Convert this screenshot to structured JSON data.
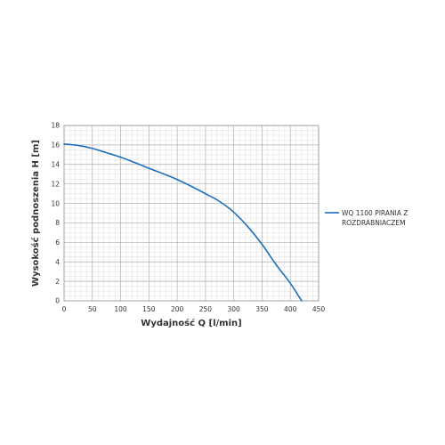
{
  "chart_data": {
    "type": "line",
    "xlabel": "Wydajność Q [l/min]",
    "ylabel": "Wysokość podnoszenia H [m]",
    "xlim": [
      0,
      450
    ],
    "ylim": [
      0,
      18
    ],
    "xticks": [
      0,
      50,
      100,
      150,
      200,
      250,
      300,
      350,
      400,
      450
    ],
    "yticks": [
      0,
      2,
      4,
      6,
      8,
      10,
      12,
      14,
      16,
      18
    ],
    "grid": true,
    "minor_grid": true,
    "legend_position": "right",
    "series": [
      {
        "name_lines": [
          "WQ 1100 PIRANIA Z",
          "ROZDRABNIACZEM"
        ],
        "color": "#1f6fbd",
        "x": [
          0,
          25,
          50,
          75,
          100,
          125,
          150,
          175,
          200,
          225,
          250,
          275,
          300,
          325,
          350,
          375,
          400,
          420
        ],
        "y": [
          16.1,
          15.95,
          15.65,
          15.2,
          14.75,
          14.2,
          13.6,
          13.05,
          12.45,
          11.75,
          11.0,
          10.2,
          9.1,
          7.6,
          5.8,
          3.7,
          1.8,
          0.0
        ]
      }
    ]
  }
}
